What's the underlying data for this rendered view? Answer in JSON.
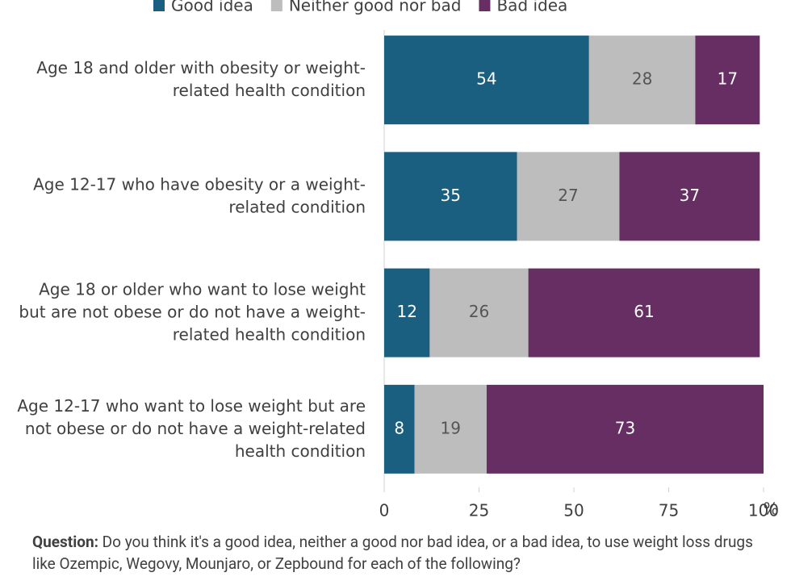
{
  "chart_data": {
    "type": "stacked-bar-horizontal",
    "categories": [
      "Age 18 and older with obesity or weight-\nrelated health condition",
      "Age 12-17 who have obesity or a weight-\nrelated condition",
      "Age 18 or older who want to lose weight\nbut are not obese or do not have a weight-\nrelated health condition",
      "Age 12-17 who want to lose weight but are\nnot obese or do not have a weight-related\nhealth condition"
    ],
    "series": [
      {
        "name": "Good idea",
        "color": "#1a5e80",
        "values": [
          54,
          35,
          12,
          8
        ]
      },
      {
        "name": "Neither good nor bad",
        "color": "#bdbdbd",
        "values": [
          28,
          27,
          26,
          19
        ]
      },
      {
        "name": "Bad idea",
        "color": "#662e62",
        "values": [
          17,
          37,
          61,
          73
        ]
      }
    ],
    "xlim": [
      0,
      100
    ],
    "xticks": [
      0,
      25,
      50,
      75,
      100
    ],
    "x_unit": "%",
    "note_label": "Question:",
    "note": "Do you think it's a good idea, neither a good nor bad idea, or a bad idea, to use weight loss drugs like Ozempic, Wegovy, Mounjaro, or Zepbound for each of the following?"
  }
}
